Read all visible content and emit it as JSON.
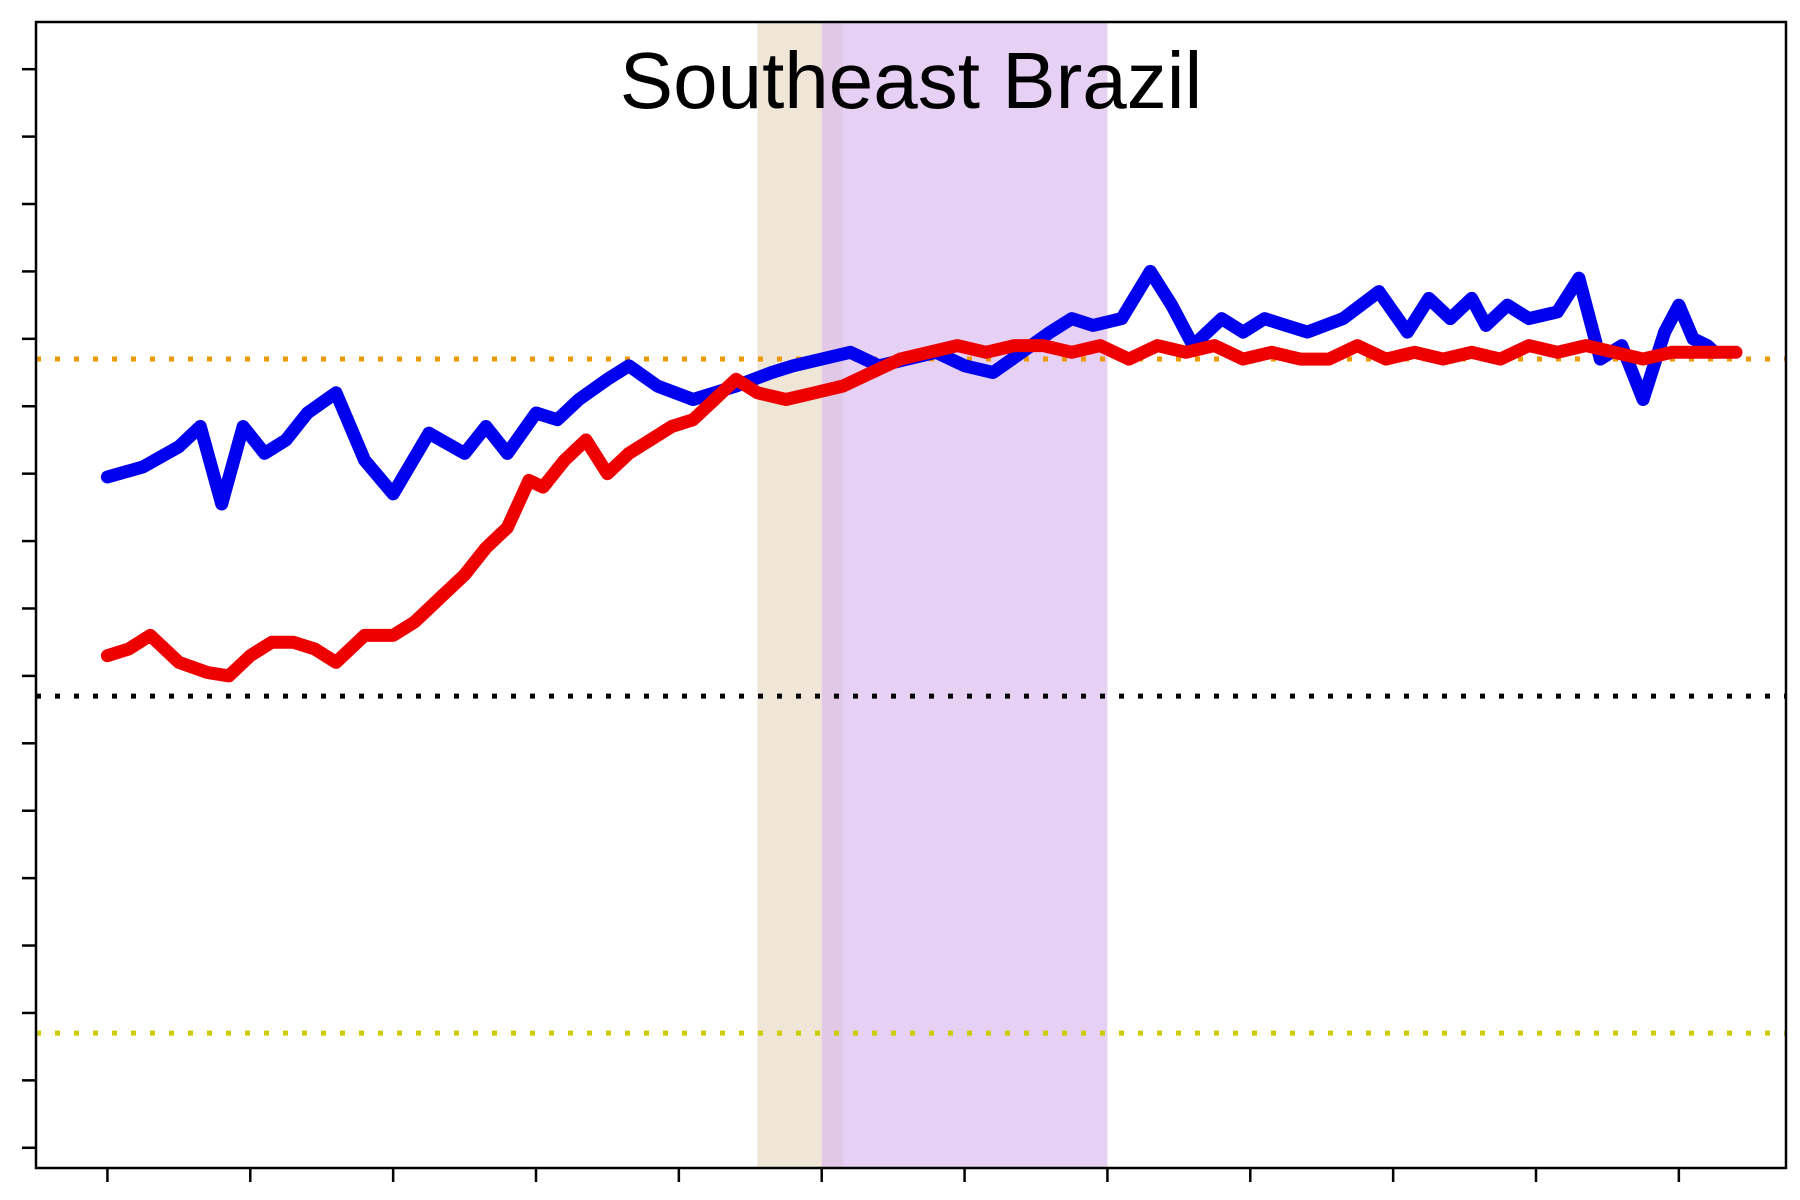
{
  "chart_data": {
    "type": "line",
    "title": "Southeast Brazil",
    "xlabel": "",
    "ylabel": "",
    "xlim": [
      0,
      24.5
    ],
    "ylim": [
      -0.7,
      1.0
    ],
    "x_ticks": [
      1,
      3,
      5,
      7,
      9,
      11,
      13,
      15,
      17,
      19,
      21,
      23
    ],
    "y_ticks": [
      -0.67,
      -0.57,
      -0.47,
      -0.37,
      -0.27,
      -0.17,
      -0.07,
      0.03,
      0.13,
      0.23,
      0.33,
      0.43,
      0.53,
      0.63,
      0.73,
      0.83,
      0.93
    ],
    "grid": false,
    "reference_lines": [
      {
        "y": 0.5,
        "color": "#ee9900",
        "style": "dotted"
      },
      {
        "y": 0.0,
        "color": "#000000",
        "style": "dotted"
      },
      {
        "y": -0.5,
        "color": "#cccc00",
        "style": "dotted"
      }
    ],
    "shaded_regions": [
      {
        "x0": 10.1,
        "x1": 11.3,
        "color": "#e8dcc8",
        "opacity": 0.7
      },
      {
        "x0": 11.0,
        "x1": 15.0,
        "color": "#d8b8f0",
        "opacity": 0.65
      }
    ],
    "series": [
      {
        "color": "#0000ee",
        "x": [
          1.0,
          1.5,
          2.0,
          2.3,
          2.6,
          2.9,
          3.2,
          3.5,
          3.8,
          4.2,
          4.6,
          5.0,
          5.5,
          6.0,
          6.3,
          6.6,
          7.0,
          7.3,
          7.6,
          8.0,
          8.3,
          8.7,
          9.2,
          9.5,
          9.8,
          10.3,
          10.6,
          11.0,
          11.4,
          11.8,
          12.2,
          12.6,
          13.0,
          13.4,
          13.8,
          14.2,
          14.5,
          14.8,
          15.2,
          15.6,
          15.9,
          16.2,
          16.6,
          16.9,
          17.2,
          17.5,
          17.8,
          18.3,
          18.8,
          19.2,
          19.5,
          19.8,
          20.1,
          20.3,
          20.6,
          20.9,
          21.3,
          21.6,
          21.9,
          22.2,
          22.5,
          22.8,
          23.0,
          23.2,
          23.4,
          23.5
        ],
        "y": [
          0.325,
          0.34,
          0.37,
          0.4,
          0.285,
          0.4,
          0.36,
          0.38,
          0.42,
          0.45,
          0.35,
          0.3,
          0.39,
          0.36,
          0.4,
          0.36,
          0.42,
          0.41,
          0.44,
          0.47,
          0.49,
          0.46,
          0.44,
          0.45,
          0.46,
          0.48,
          0.49,
          0.5,
          0.51,
          0.49,
          0.5,
          0.51,
          0.49,
          0.48,
          0.51,
          0.54,
          0.56,
          0.55,
          0.56,
          0.63,
          0.58,
          0.52,
          0.56,
          0.54,
          0.56,
          0.55,
          0.54,
          0.56,
          0.6,
          0.54,
          0.59,
          0.56,
          0.59,
          0.55,
          0.58,
          0.56,
          0.57,
          0.62,
          0.5,
          0.52,
          0.44,
          0.54,
          0.58,
          0.53,
          0.52,
          0.51
        ]
      },
      {
        "color": "#ee0000",
        "x": [
          1.0,
          1.3,
          1.6,
          2.0,
          2.4,
          2.7,
          3.0,
          3.3,
          3.6,
          3.9,
          4.2,
          4.6,
          5.0,
          5.3,
          5.7,
          6.0,
          6.3,
          6.6,
          6.9,
          7.1,
          7.4,
          7.7,
          8.0,
          8.3,
          8.6,
          8.9,
          9.2,
          9.5,
          9.8,
          10.1,
          10.5,
          10.9,
          11.3,
          11.7,
          12.1,
          12.5,
          12.9,
          13.3,
          13.7,
          14.1,
          14.5,
          14.9,
          15.3,
          15.7,
          16.1,
          16.5,
          16.9,
          17.3,
          17.7,
          18.1,
          18.5,
          18.9,
          19.3,
          19.7,
          20.1,
          20.5,
          20.9,
          21.3,
          21.7,
          22.1,
          22.5,
          22.9,
          23.2,
          23.5,
          23.8
        ],
        "y": [
          0.06,
          0.07,
          0.09,
          0.05,
          0.035,
          0.03,
          0.06,
          0.08,
          0.08,
          0.07,
          0.05,
          0.09,
          0.09,
          0.11,
          0.15,
          0.18,
          0.22,
          0.25,
          0.32,
          0.31,
          0.35,
          0.38,
          0.33,
          0.36,
          0.38,
          0.4,
          0.41,
          0.44,
          0.47,
          0.45,
          0.44,
          0.45,
          0.46,
          0.48,
          0.5,
          0.51,
          0.52,
          0.51,
          0.52,
          0.52,
          0.51,
          0.52,
          0.5,
          0.52,
          0.51,
          0.52,
          0.5,
          0.51,
          0.5,
          0.5,
          0.52,
          0.5,
          0.51,
          0.5,
          0.51,
          0.5,
          0.52,
          0.51,
          0.52,
          0.51,
          0.5,
          0.51,
          0.51,
          0.51,
          0.51
        ]
      }
    ]
  }
}
